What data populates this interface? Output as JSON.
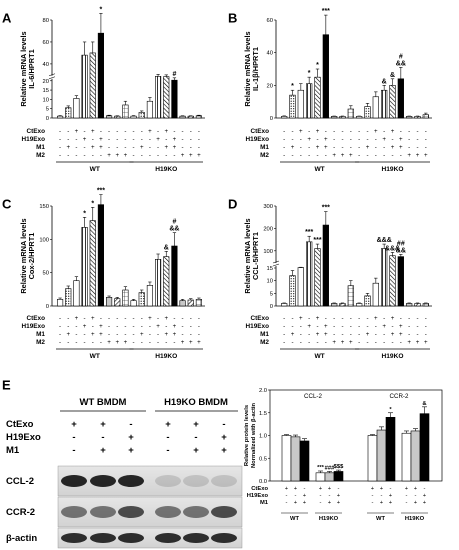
{
  "chart_data": [
    {
      "panel": "A",
      "type": "bar",
      "ylabel": [
        "Relative mRNA levels",
        "IL-6/HPRT1"
      ],
      "yticks": [
        0,
        5,
        10,
        15,
        20,
        40,
        60,
        80
      ],
      "ybreak": [
        20,
        30
      ],
      "values": [
        1,
        5.5,
        10.5,
        48,
        50,
        68,
        1.2,
        1,
        7,
        1,
        3,
        9,
        27.5,
        27,
        21,
        1,
        1,
        1.2
      ],
      "errors": [
        0.3,
        1,
        1.5,
        12,
        10,
        18,
        0.3,
        0.2,
        2,
        0.3,
        0.8,
        2,
        3,
        3,
        4,
        0.2,
        0.2,
        0.3
      ],
      "sig": {
        "5": "*",
        "14": "#"
      }
    },
    {
      "panel": "B",
      "type": "bar",
      "ylabel": [
        "Relative mRNA levels",
        "IL-1β/HPRT1"
      ],
      "yticks": [
        0,
        20,
        40,
        60
      ],
      "ybreak": null,
      "values": [
        1,
        14,
        17,
        21,
        25,
        51,
        1,
        1,
        5.5,
        1,
        7,
        13,
        17,
        20,
        24,
        1,
        1,
        2
      ],
      "errors": [
        0.3,
        3,
        4,
        4,
        5,
        12,
        0.2,
        0.2,
        2,
        0.2,
        2,
        3,
        3,
        4,
        7,
        0.2,
        0.2,
        1
      ],
      "sig": {
        "1": "*",
        "3": "*",
        "4": "*",
        "5": "***",
        "12": "&",
        "13": "&",
        "14": "#\n&&"
      }
    },
    {
      "panel": "C",
      "type": "bar",
      "ylabel": [
        "Relative mRNA levels",
        "Cox-2/HPRT1"
      ],
      "yticks": [
        0,
        50,
        100,
        150
      ],
      "ybreak": null,
      "values": [
        10,
        26,
        38,
        118,
        128,
        152,
        13,
        11,
        24,
        8,
        20,
        31,
        70,
        74,
        90,
        8,
        9,
        10
      ],
      "errors": [
        2,
        4,
        6,
        15,
        20,
        15,
        2,
        2,
        5,
        2,
        4,
        5,
        8,
        8,
        20,
        2,
        2,
        2
      ],
      "sig": {
        "3": "*",
        "4": "*",
        "5": "***",
        "13": "&",
        "14": "#\n&&"
      }
    },
    {
      "panel": "D",
      "type": "bar",
      "ylabel": [
        "Relative mRNA levels",
        "CCL-5/HPRT1"
      ],
      "yticks": [
        0,
        5,
        10,
        15,
        100,
        200,
        300
      ],
      "ybreak": [
        15,
        50
      ],
      "values": [
        1,
        12,
        17.5,
        140,
        110,
        215,
        1,
        1,
        8,
        1,
        4,
        9,
        110,
        78,
        74,
        1,
        1,
        1
      ],
      "errors": [
        0.2,
        2,
        2,
        25,
        20,
        60,
        0.2,
        0.2,
        2,
        0.2,
        1,
        2,
        20,
        15,
        10,
        0.2,
        0.2,
        0.2
      ],
      "sig": {
        "3": "***",
        "4": "***",
        "5": "***",
        "12": "&&&",
        "13": "&&&",
        "14": "##\n&&"
      }
    },
    {
      "panel": "E",
      "type": "bar",
      "ylabel": [
        "Relative protein levels",
        "Normalized with β-actin"
      ],
      "yticks": [
        0.0,
        0.5,
        1.0,
        1.5,
        2.0
      ],
      "ylim": [
        0,
        2
      ],
      "groups": [
        {
          "title": "CCL-2",
          "values": [
            1.0,
            0.97,
            0.88,
            0.18,
            0.18,
            0.21
          ],
          "errors": [
            0.02,
            0.04,
            0.05,
            0.04,
            0.03,
            0.03
          ],
          "sig": [
            "",
            "",
            "",
            "***",
            "###",
            "$$$"
          ]
        },
        {
          "title": "CCR-2",
          "values": [
            1.0,
            1.12,
            1.4,
            1.05,
            1.1,
            1.48
          ],
          "errors": [
            0.02,
            0.07,
            0.1,
            0.05,
            0.05,
            0.15
          ],
          "sig": [
            "",
            "",
            "*",
            "",
            "",
            "&"
          ]
        }
      ],
      "conditions": {
        "CtExo": [
          "+",
          "+",
          "-",
          "+",
          "+",
          "-"
        ],
        "H19Exo": [
          "-",
          "-",
          "+",
          "-",
          "-",
          "+"
        ],
        "M1": [
          "-",
          "+",
          "+",
          "-",
          "+",
          "+"
        ]
      },
      "group_labels": [
        "WT",
        "H19KO"
      ]
    }
  ],
  "figure": {
    "panel_letters": [
      "A",
      "B",
      "C",
      "D",
      "E"
    ],
    "condition_rows": [
      {
        "label": "CtExo",
        "values": [
          "-",
          "-",
          "+",
          "-",
          "+",
          "-",
          "-",
          "-",
          "-",
          "-",
          "-",
          "+",
          "-",
          "+",
          "-",
          "-",
          "-",
          "-"
        ]
      },
      {
        "label": "H19Exo",
        "values": [
          "-",
          "-",
          "-",
          "+",
          "-",
          "+",
          "-",
          "-",
          "-",
          "-",
          "-",
          "-",
          "+",
          "-",
          "+",
          "-",
          "-",
          "-"
        ]
      },
      {
        "label": "M1",
        "values": [
          "-",
          "+",
          "-",
          "-",
          "+",
          "+",
          "-",
          "-",
          "-",
          "-",
          "+",
          "-",
          "-",
          "+",
          "+",
          "-",
          "-",
          "-"
        ]
      },
      {
        "label": "M2",
        "values": [
          "-",
          "-",
          "-",
          "-",
          "-",
          "-",
          "+",
          "+",
          "+",
          "-",
          "-",
          "-",
          "-",
          "-",
          "-",
          "+",
          "+",
          "+"
        ]
      }
    ],
    "group_labels": [
      "WT",
      "H19KO"
    ],
    "blot": {
      "headers": [
        "WT BMDM",
        "H19KO BMDM"
      ],
      "row_labels": [
        "CtExo",
        "H19Exo",
        "M1"
      ],
      "signs": {
        "CtExo": [
          "+",
          "+",
          "-",
          "+",
          "+",
          "-"
        ],
        "H19Exo": [
          "-",
          "-",
          "+",
          "-",
          "-",
          "+"
        ],
        "M1": [
          "-",
          "+",
          "+",
          "-",
          "+",
          "+"
        ]
      },
      "bands": [
        "CCL-2",
        "CCR-2",
        "β-actin"
      ]
    },
    "colors": {
      "black": "#000000",
      "grey": "#c8c8c8",
      "white": "#ffffff"
    }
  }
}
